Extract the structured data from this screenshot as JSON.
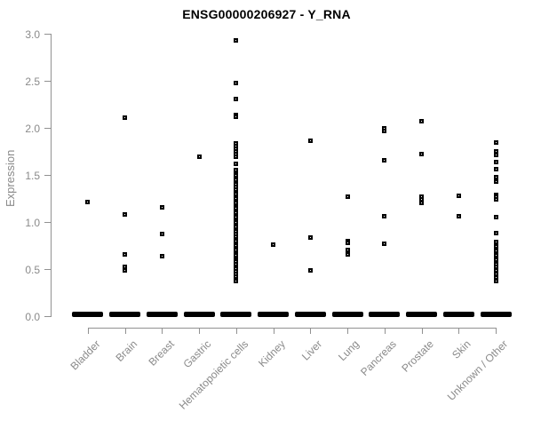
{
  "header": {
    "title": "ENSG00000206927 - Y_RNA"
  },
  "colors": {
    "point": "#000000",
    "axis_line": "#919191",
    "tick_label": "#8a8a8a",
    "background": "#ffffff"
  },
  "chart_data": {
    "type": "scatter",
    "subtype": "strip-plot",
    "title": "ENSG00000206927 - Y_RNA",
    "xlabel": "",
    "ylabel": "Expression",
    "ylim": [
      0.0,
      3.0
    ],
    "ytick_values": [
      3.0,
      2.5,
      2.0,
      1.5,
      1.0,
      0.5,
      0.0
    ],
    "ytick_labels": [
      "3.0",
      "2.5",
      "2.0",
      "1.5",
      "1.0",
      "0.5",
      "0.0"
    ],
    "grid": false,
    "legend": false,
    "categories": [
      "Bladder",
      "Brain",
      "Breast",
      "Gastric",
      "Hematopoietic cells",
      "Kidney",
      "Liver",
      "Lung",
      "Pancreas",
      "Prostate",
      "Skin",
      "Unknown / Other"
    ],
    "series": [
      {
        "name": "Bladder",
        "has_zero_cluster": true,
        "values": [
          1.21
        ]
      },
      {
        "name": "Brain",
        "has_zero_cluster": true,
        "values": [
          2.11,
          1.08,
          0.66,
          0.52,
          0.49
        ]
      },
      {
        "name": "Breast",
        "has_zero_cluster": true,
        "values": [
          1.16,
          0.87,
          0.64
        ]
      },
      {
        "name": "Gastric",
        "has_zero_cluster": true,
        "values": [
          1.7
        ]
      },
      {
        "name": "Hematopoietic cells",
        "has_zero_cluster": true,
        "values": [
          2.93,
          2.48,
          2.31,
          2.14,
          2.12,
          1.84,
          1.81,
          1.78,
          1.75,
          1.72,
          1.7,
          1.62,
          1.55,
          1.52,
          1.5,
          1.47,
          1.45,
          1.42,
          1.4,
          1.37,
          1.35,
          1.32,
          1.3,
          1.27,
          1.25,
          1.22,
          1.2,
          1.17,
          1.15,
          1.12,
          1.1,
          1.07,
          1.05,
          1.02,
          1.0,
          0.97,
          0.95,
          0.92,
          0.9,
          0.87,
          0.85,
          0.82,
          0.8,
          0.77,
          0.75,
          0.72,
          0.7,
          0.67,
          0.65,
          0.62,
          0.6,
          0.58,
          0.55,
          0.51,
          0.48,
          0.45,
          0.42,
          0.39,
          0.37
        ]
      },
      {
        "name": "Kidney",
        "has_zero_cluster": true,
        "values": [
          0.76
        ]
      },
      {
        "name": "Liver",
        "has_zero_cluster": true,
        "values": [
          1.87,
          0.84,
          0.49
        ]
      },
      {
        "name": "Lung",
        "has_zero_cluster": true,
        "values": [
          1.27,
          0.8,
          0.78,
          0.7,
          0.66
        ]
      },
      {
        "name": "Pancreas",
        "has_zero_cluster": true,
        "values": [
          2.0,
          1.97,
          1.66,
          1.06,
          0.77
        ]
      },
      {
        "name": "Prostate",
        "has_zero_cluster": true,
        "values": [
          2.07,
          1.72,
          1.27,
          1.24,
          1.2
        ]
      },
      {
        "name": "Skin",
        "has_zero_cluster": true,
        "values": [
          1.28,
          1.06
        ]
      },
      {
        "name": "Unknown / Other",
        "has_zero_cluster": true,
        "values": [
          1.85,
          1.75,
          1.71,
          1.64,
          1.56,
          1.48,
          1.43,
          1.29,
          1.27,
          1.24,
          1.05,
          0.88,
          0.79,
          0.74,
          0.69,
          0.65,
          0.6,
          0.55,
          0.52,
          0.49,
          0.45,
          0.41,
          0.37
        ]
      }
    ]
  }
}
